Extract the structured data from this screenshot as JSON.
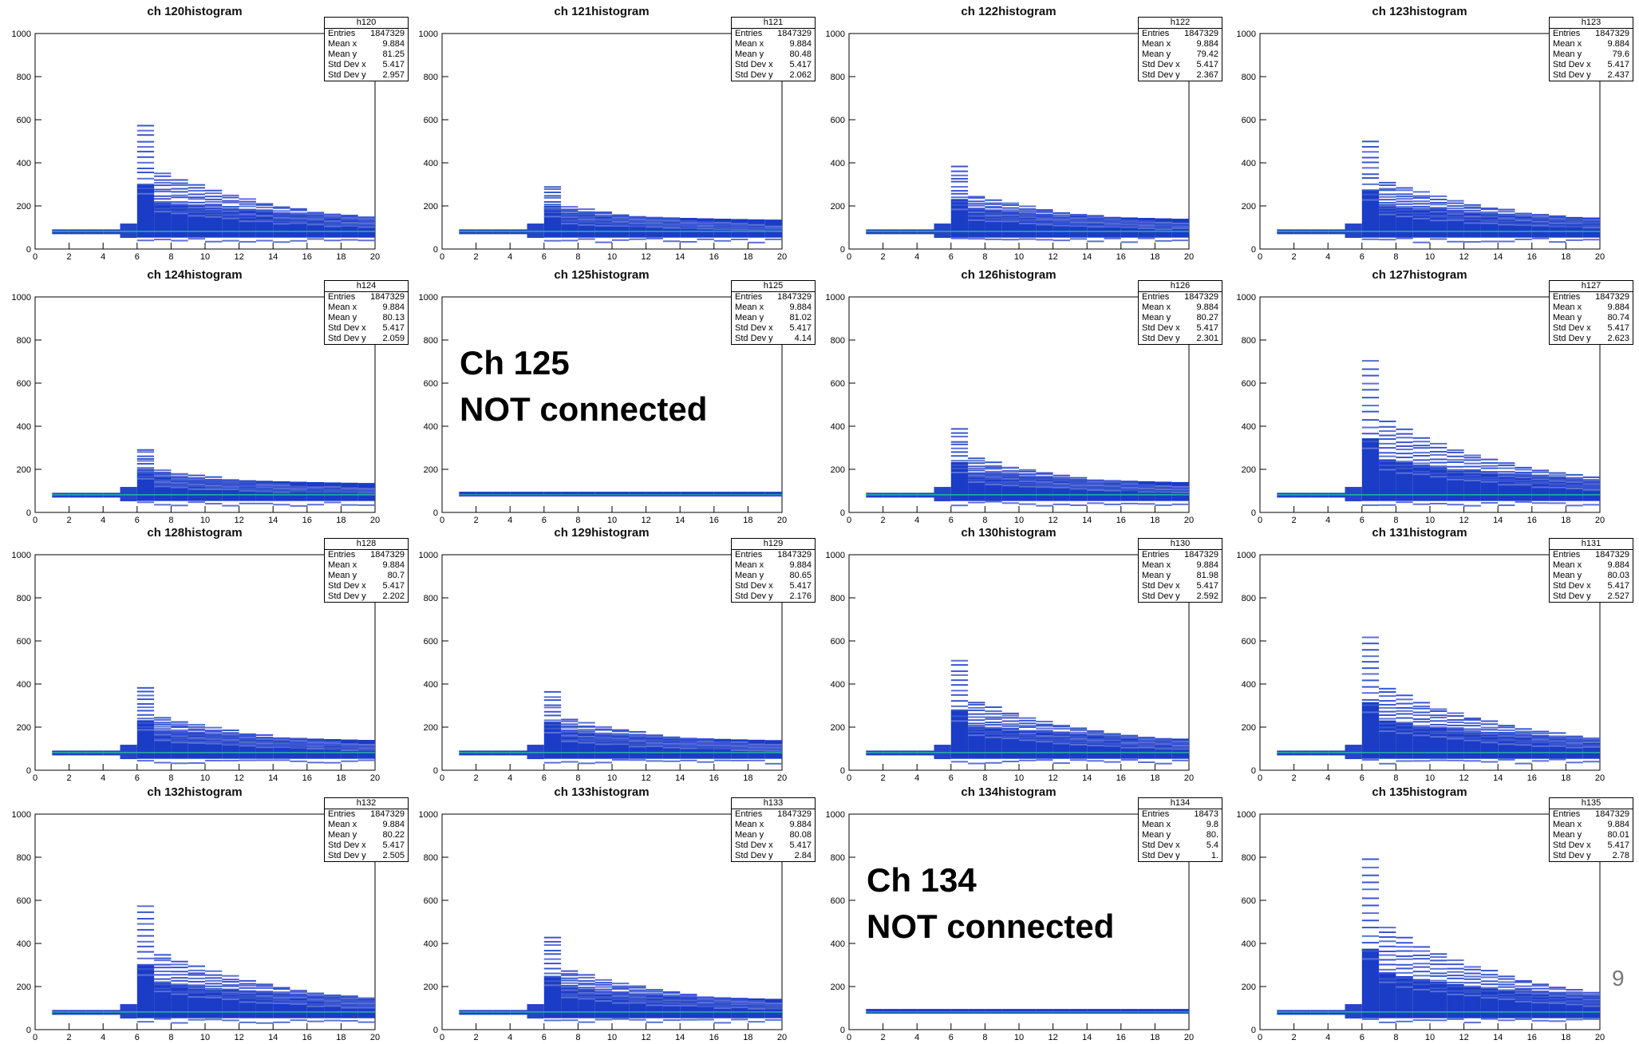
{
  "slide": {
    "page_number": "9"
  },
  "chart_data": [
    {
      "type": "heatmap",
      "title": "ch 120histogram",
      "hist_name": "h120",
      "stats": [
        [
          "Entries",
          "1847329"
        ],
        [
          "Mean x",
          "9.884"
        ],
        [
          "Mean y",
          "81.25"
        ],
        [
          "Std Dev x",
          "5.417"
        ],
        [
          "Std Dev y",
          "2.957"
        ]
      ],
      "xlim": [
        0,
        20
      ],
      "ylim": [
        0,
        1000
      ],
      "xticks": [
        "0",
        "2",
        "4",
        "6",
        "8",
        "10",
        "12",
        "14",
        "16",
        "18",
        "20"
      ],
      "yticks": [
        "0",
        "200",
        "400",
        "600",
        "800",
        "1000"
      ],
      "connected": true,
      "peak_y": 575,
      "spread": 1.0
    },
    {
      "type": "heatmap",
      "title": "ch 121histogram",
      "hist_name": "h121",
      "stats": [
        [
          "Entries",
          "1847329"
        ],
        [
          "Mean x",
          "9.884"
        ],
        [
          "Mean y",
          "80.48"
        ],
        [
          "Std Dev x",
          "5.417"
        ],
        [
          "Std Dev y",
          "2.062"
        ]
      ],
      "xlim": [
        0,
        20
      ],
      "ylim": [
        0,
        1000
      ],
      "xticks": [
        "0",
        "2",
        "4",
        "6",
        "8",
        "10",
        "12",
        "14",
        "16",
        "18",
        "20"
      ],
      "yticks": [
        "0",
        "200",
        "400",
        "600",
        "800",
        "1000"
      ],
      "connected": true,
      "peak_y": 290,
      "spread": 0.6
    },
    {
      "type": "heatmap",
      "title": "ch 122histogram",
      "hist_name": "h122",
      "stats": [
        [
          "Entries",
          "1847329"
        ],
        [
          "Mean x",
          "9.884"
        ],
        [
          "Mean y",
          "79.42"
        ],
        [
          "Std Dev x",
          "5.417"
        ],
        [
          "Std Dev y",
          "2.367"
        ]
      ],
      "xlim": [
        0,
        20
      ],
      "ylim": [
        0,
        1000
      ],
      "xticks": [
        "0",
        "2",
        "4",
        "6",
        "8",
        "10",
        "12",
        "14",
        "16",
        "18",
        "20"
      ],
      "yticks": [
        "0",
        "200",
        "400",
        "600",
        "800",
        "1000"
      ],
      "connected": true,
      "peak_y": 380,
      "spread": 0.75
    },
    {
      "type": "heatmap",
      "title": "ch 123histogram",
      "hist_name": "h123",
      "stats": [
        [
          "Entries",
          "1847329"
        ],
        [
          "Mean x",
          "9.884"
        ],
        [
          "Mean y",
          "79.6"
        ],
        [
          "Std Dev x",
          "5.417"
        ],
        [
          "Std Dev y",
          "2.437"
        ]
      ],
      "xlim": [
        0,
        20
      ],
      "ylim": [
        0,
        1000
      ],
      "xticks": [
        "0",
        "2",
        "4",
        "6",
        "8",
        "10",
        "12",
        "14",
        "16",
        "18",
        "20"
      ],
      "yticks": [
        "0",
        "200",
        "400",
        "600",
        "800",
        "1000"
      ],
      "connected": true,
      "peak_y": 500,
      "spread": 0.8
    },
    {
      "type": "heatmap",
      "title": "ch 124histogram",
      "hist_name": "h124",
      "stats": [
        [
          "Entries",
          "1847329"
        ],
        [
          "Mean x",
          "9.884"
        ],
        [
          "Mean y",
          "80.13"
        ],
        [
          "Std Dev x",
          "5.417"
        ],
        [
          "Std Dev y",
          "2.059"
        ]
      ],
      "xlim": [
        0,
        20
      ],
      "ylim": [
        0,
        1000
      ],
      "xticks": [
        "0",
        "2",
        "4",
        "6",
        "8",
        "10",
        "12",
        "14",
        "16",
        "18",
        "20"
      ],
      "yticks": [
        "0",
        "200",
        "400",
        "600",
        "800",
        "1000"
      ],
      "connected": true,
      "peak_y": 290,
      "spread": 0.6
    },
    {
      "type": "heatmap",
      "title": "ch 125histogram",
      "hist_name": "h125",
      "stats": [
        [
          "Entries",
          "1847329"
        ],
        [
          "Mean x",
          "9.884"
        ],
        [
          "Mean y",
          "81.02"
        ],
        [
          "Std Dev x",
          "5.417"
        ],
        [
          "Std Dev y",
          "4.14"
        ]
      ],
      "xlim": [
        0,
        20
      ],
      "ylim": [
        0,
        1000
      ],
      "xticks": [
        "0",
        "2",
        "4",
        "6",
        "8",
        "10",
        "12",
        "14",
        "16",
        "18",
        "20"
      ],
      "yticks": [
        "0",
        "200",
        "400",
        "600",
        "800",
        "1000"
      ],
      "connected": false,
      "note": [
        "Ch 125",
        "NOT connected"
      ]
    },
    {
      "type": "heatmap",
      "title": "ch 126histogram",
      "hist_name": "h126",
      "stats": [
        [
          "Entries",
          "1847329"
        ],
        [
          "Mean x",
          "9.884"
        ],
        [
          "Mean y",
          "80.27"
        ],
        [
          "Std Dev x",
          "5.417"
        ],
        [
          "Std Dev y",
          "2.301"
        ]
      ],
      "xlim": [
        0,
        20
      ],
      "ylim": [
        0,
        1000
      ],
      "xticks": [
        "0",
        "2",
        "4",
        "6",
        "8",
        "10",
        "12",
        "14",
        "16",
        "18",
        "20"
      ],
      "yticks": [
        "0",
        "200",
        "400",
        "600",
        "800",
        "1000"
      ],
      "connected": true,
      "peak_y": 385,
      "spread": 0.75
    },
    {
      "type": "heatmap",
      "title": "ch 127histogram",
      "hist_name": "h127",
      "stats": [
        [
          "Entries",
          "1847329"
        ],
        [
          "Mean x",
          "9.884"
        ],
        [
          "Mean y",
          "80.74"
        ],
        [
          "Std Dev x",
          "5.417"
        ],
        [
          "Std Dev y",
          "2.623"
        ]
      ],
      "xlim": [
        0,
        20
      ],
      "ylim": [
        0,
        1000
      ],
      "xticks": [
        "0",
        "2",
        "4",
        "6",
        "8",
        "10",
        "12",
        "14",
        "16",
        "18",
        "20"
      ],
      "yticks": [
        "0",
        "200",
        "400",
        "600",
        "800",
        "1000"
      ],
      "connected": true,
      "peak_y": 700,
      "spread": 0.9
    },
    {
      "type": "heatmap",
      "title": "ch 128histogram",
      "hist_name": "h128",
      "stats": [
        [
          "Entries",
          "1847329"
        ],
        [
          "Mean x",
          "9.884"
        ],
        [
          "Mean y",
          "80.7"
        ],
        [
          "Std Dev x",
          "5.417"
        ],
        [
          "Std Dev y",
          "2.202"
        ]
      ],
      "xlim": [
        0,
        20
      ],
      "ylim": [
        0,
        1000
      ],
      "xticks": [
        "0",
        "2",
        "4",
        "6",
        "8",
        "10",
        "12",
        "14",
        "16",
        "18",
        "20"
      ],
      "yticks": [
        "0",
        "200",
        "400",
        "600",
        "800",
        "1000"
      ],
      "connected": true,
      "peak_y": 380,
      "spread": 0.75
    },
    {
      "type": "heatmap",
      "title": "ch 129histogram",
      "hist_name": "h129",
      "stats": [
        [
          "Entries",
          "1847329"
        ],
        [
          "Mean x",
          "9.884"
        ],
        [
          "Mean y",
          "80.65"
        ],
        [
          "Std Dev x",
          "5.417"
        ],
        [
          "Std Dev y",
          "2.176"
        ]
      ],
      "xlim": [
        0,
        20
      ],
      "ylim": [
        0,
        1000
      ],
      "xticks": [
        "0",
        "2",
        "4",
        "6",
        "8",
        "10",
        "12",
        "14",
        "16",
        "18",
        "20"
      ],
      "yticks": [
        "0",
        "200",
        "400",
        "600",
        "800",
        "1000"
      ],
      "connected": true,
      "peak_y": 360,
      "spread": 0.65
    },
    {
      "type": "heatmap",
      "title": "ch 130histogram",
      "hist_name": "h130",
      "stats": [
        [
          "Entries",
          "1847329"
        ],
        [
          "Mean x",
          "9.884"
        ],
        [
          "Mean y",
          "81.98"
        ],
        [
          "Std Dev x",
          "5.417"
        ],
        [
          "Std Dev y",
          "2.592"
        ]
      ],
      "xlim": [
        0,
        20
      ],
      "ylim": [
        0,
        1000
      ],
      "xticks": [
        "0",
        "2",
        "4",
        "6",
        "8",
        "10",
        "12",
        "14",
        "16",
        "18",
        "20"
      ],
      "yticks": [
        "0",
        "200",
        "400",
        "600",
        "800",
        "1000"
      ],
      "connected": true,
      "peak_y": 510,
      "spread": 0.85
    },
    {
      "type": "heatmap",
      "title": "ch 131histogram",
      "hist_name": "h131",
      "stats": [
        [
          "Entries",
          "1847329"
        ],
        [
          "Mean x",
          "9.884"
        ],
        [
          "Mean y",
          "80.03"
        ],
        [
          "Std Dev x",
          "5.417"
        ],
        [
          "Std Dev y",
          "2.527"
        ]
      ],
      "xlim": [
        0,
        20
      ],
      "ylim": [
        0,
        1000
      ],
      "xticks": [
        "0",
        "2",
        "4",
        "6",
        "8",
        "10",
        "12",
        "14",
        "16",
        "18",
        "20"
      ],
      "yticks": [
        "0",
        "200",
        "400",
        "600",
        "800",
        "1000"
      ],
      "connected": true,
      "peak_y": 620,
      "spread": 0.85
    },
    {
      "type": "heatmap",
      "title": "ch 132histogram",
      "hist_name": "h132",
      "stats": [
        [
          "Entries",
          "1847329"
        ],
        [
          "Mean x",
          "9.884"
        ],
        [
          "Mean y",
          "80.22"
        ],
        [
          "Std Dev x",
          "5.417"
        ],
        [
          "Std Dev y",
          "2.505"
        ]
      ],
      "xlim": [
        0,
        20
      ],
      "ylim": [
        0,
        1000
      ],
      "xticks": [
        "0",
        "2",
        "4",
        "6",
        "8",
        "10",
        "12",
        "14",
        "16",
        "18",
        "20"
      ],
      "yticks": [
        "0",
        "200",
        "400",
        "600",
        "800",
        "1000"
      ],
      "connected": true,
      "peak_y": 570,
      "spread": 0.85
    },
    {
      "type": "heatmap",
      "title": "ch 133histogram",
      "hist_name": "h133",
      "stats": [
        [
          "Entries",
          "1847329"
        ],
        [
          "Mean x",
          "9.884"
        ],
        [
          "Mean y",
          "80.08"
        ],
        [
          "Std Dev x",
          "5.417"
        ],
        [
          "Std Dev y",
          "2.84"
        ]
      ],
      "xlim": [
        0,
        20
      ],
      "ylim": [
        0,
        1000
      ],
      "xticks": [
        "0",
        "2",
        "4",
        "6",
        "8",
        "10",
        "12",
        "14",
        "16",
        "18",
        "20"
      ],
      "yticks": [
        "0",
        "200",
        "400",
        "600",
        "800",
        "1000"
      ],
      "connected": true,
      "peak_y": 430,
      "spread": 0.8
    },
    {
      "type": "heatmap",
      "title": "ch 134histogram",
      "hist_name": "h134",
      "stats": [
        [
          "Entries",
          "18473"
        ],
        [
          "Mean x",
          "9.8"
        ],
        [
          "Mean y",
          "80."
        ],
        [
          "Std Dev x",
          "5.4"
        ],
        [
          "Std Dev y",
          "1."
        ]
      ],
      "xlim": [
        0,
        20
      ],
      "ylim": [
        0,
        1000
      ],
      "xticks": [
        "0",
        "2",
        "4",
        "6",
        "8",
        "10",
        "12",
        "14",
        "16",
        "18",
        "20"
      ],
      "yticks": [
        "0",
        "200",
        "400",
        "600",
        "800",
        "1000"
      ],
      "connected": false,
      "note": [
        "Ch 134",
        "NOT connected"
      ]
    },
    {
      "type": "heatmap",
      "title": "ch 135histogram",
      "hist_name": "h135",
      "stats": [
        [
          "Entries",
          "1847329"
        ],
        [
          "Mean x",
          "9.884"
        ],
        [
          "Mean y",
          "80.01"
        ],
        [
          "Std Dev x",
          "5.417"
        ],
        [
          "Std Dev y",
          "2.78"
        ]
      ],
      "xlim": [
        0,
        20
      ],
      "ylim": [
        0,
        1000
      ],
      "xticks": [
        "0",
        "2",
        "4",
        "6",
        "8",
        "10",
        "12",
        "14",
        "16",
        "18",
        "20"
      ],
      "yticks": [
        "0",
        "200",
        "400",
        "600",
        "800",
        "1000"
      ],
      "connected": true,
      "peak_y": 790,
      "spread": 0.95
    }
  ]
}
